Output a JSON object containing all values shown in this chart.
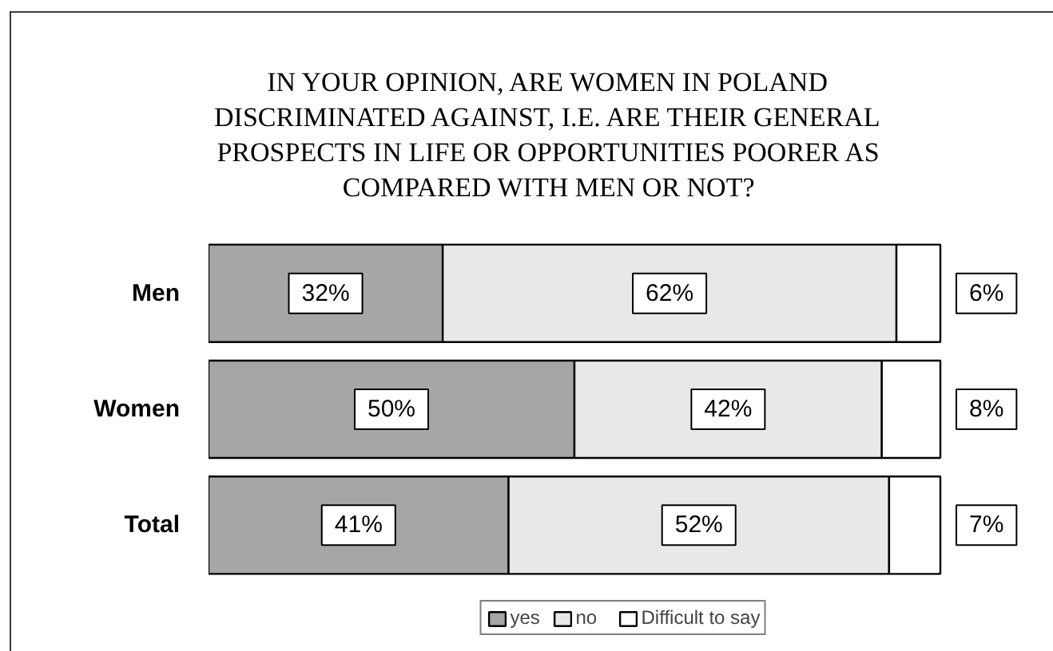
{
  "chart_data": {
    "type": "bar",
    "orientation": "horizontal",
    "stacked": true,
    "title": "IN YOUR OPINION, ARE WOMEN IN POLAND DISCRIMINATED AGAINST, I.E. ARE THEIR GENERAL PROSPECTS IN LIFE OR OPPORTUNITIES POORER AS COMPARED WITH MEN OR NOT?",
    "categories": [
      "Men",
      "Women",
      "Total"
    ],
    "series": [
      {
        "name": "yes",
        "color": "#a6a6a6",
        "values": [
          32,
          50,
          41
        ],
        "value_labels": [
          "32%",
          "50%",
          "41%"
        ]
      },
      {
        "name": "no",
        "color": "#e8e8e8",
        "values": [
          62,
          42,
          52
        ],
        "value_labels": [
          "62%",
          "42%",
          "52%"
        ]
      },
      {
        "name": "Difficult to say",
        "color": "#ffffff",
        "values": [
          6,
          8,
          7
        ],
        "value_labels": [
          "6%",
          "8%",
          "7%"
        ]
      }
    ],
    "xlim": [
      0,
      100
    ],
    "tick_labels": "y",
    "grid": false,
    "legend": "bottom"
  }
}
